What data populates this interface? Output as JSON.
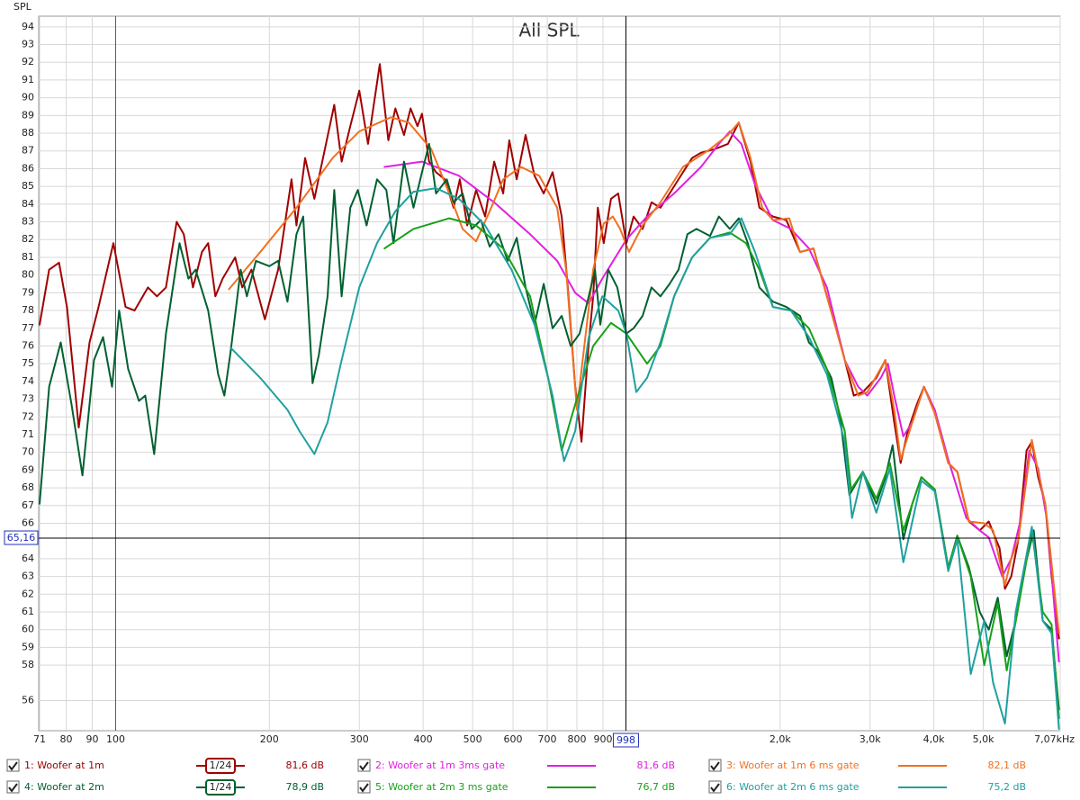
{
  "chart_data": {
    "type": "line",
    "title": "All SPL",
    "y_label": "SPL",
    "xscale": "log",
    "grid": true,
    "xlim": [
      70.7,
      7070
    ],
    "ylim": [
      54.3,
      94.6
    ],
    "xticks": [
      71,
      80,
      90,
      100,
      200,
      300,
      400,
      500,
      600,
      700,
      800,
      900,
      {
        "value": 2000,
        "label": "2,0k"
      },
      {
        "value": 3000,
        "label": "3,0k"
      },
      {
        "value": 4000,
        "label": "4,0k"
      },
      {
        "value": 5000,
        "label": "5,0k"
      },
      {
        "value": 7070,
        "label": "7,07kHz"
      }
    ],
    "yticks": [
      56,
      58,
      59,
      60,
      61,
      62,
      63,
      64,
      66,
      67,
      68,
      69,
      70,
      71,
      72,
      73,
      74,
      75,
      76,
      77,
      78,
      79,
      80,
      81,
      82,
      83,
      84,
      85,
      86,
      87,
      88,
      89,
      90,
      91,
      92,
      93,
      94
    ],
    "cursor": {
      "x": 998,
      "y": {
        "value": 65.16,
        "label": "65,16"
      }
    },
    "series": [
      {
        "name": "1: Woofer at 1m",
        "color": "#a00000",
        "smoothing": "1/24",
        "readout": "81,6 dB",
        "x": [
          71,
          74.1,
          77.5,
          80.3,
          84.7,
          88.9,
          92.6,
          99,
          104.6,
          108.9,
          115.7,
          120.5,
          125.5,
          131.7,
          136,
          141.7,
          147.6,
          151.8,
          156.8,
          162,
          171.4,
          177,
          184.5,
          196,
          208,
          221,
          226,
          235,
          245,
          268,
          277,
          288,
          300,
          312,
          329,
          342,
          353,
          367,
          378,
          390,
          398,
          411,
          424,
          441,
          459,
          472,
          488,
          508,
          529,
          551,
          574,
          590,
          610,
          635,
          661,
          689,
          717,
          747,
          768,
          794,
          817,
          844,
          861,
          879,
          903,
          933,
          964,
          1000,
          1033,
          1076,
          1120,
          1166,
          1215,
          1291,
          1345,
          1400,
          1488,
          1581,
          1660,
          1750,
          1822,
          1936,
          2057,
          2188,
          2325,
          2470,
          2624,
          2788,
          2904,
          3086,
          3214,
          3346,
          3443,
          3557,
          3705,
          3826,
          4017,
          4268,
          4446,
          4686,
          4920,
          5123,
          5378,
          5510,
          5670,
          5856,
          6074,
          6223,
          6400,
          6610,
          6800,
          7030
        ],
        "values": [
          77.2,
          80.3,
          80.7,
          78.2,
          71.4,
          76.2,
          78.2,
          81.8,
          78.2,
          78.0,
          79.3,
          78.8,
          79.3,
          83.0,
          82.3,
          79.3,
          81.3,
          81.8,
          78.8,
          79.8,
          81.0,
          79.3,
          80.3,
          77.5,
          80.3,
          85.4,
          82.8,
          86.6,
          84.3,
          89.6,
          86.4,
          88.4,
          90.4,
          87.4,
          91.9,
          87.6,
          89.4,
          87.9,
          89.4,
          88.4,
          89.1,
          86.4,
          85.8,
          85.4,
          83.8,
          85.4,
          82.8,
          84.8,
          83.3,
          86.4,
          84.6,
          87.6,
          85.4,
          87.9,
          85.6,
          84.6,
          85.8,
          83.3,
          79.3,
          73.7,
          70.6,
          76.2,
          78.8,
          83.8,
          81.8,
          84.3,
          84.6,
          81.8,
          83.3,
          82.6,
          84.1,
          83.8,
          84.6,
          85.8,
          86.6,
          86.9,
          87.1,
          87.4,
          88.6,
          86.4,
          83.8,
          83.3,
          83.1,
          81.3,
          81.5,
          78.8,
          76.2,
          73.2,
          73.4,
          74.2,
          75.2,
          71.7,
          69.4,
          71.2,
          72.7,
          73.7,
          72.2,
          69.4,
          68.9,
          66.1,
          65.6,
          66.1,
          64.6,
          62.3,
          63.0,
          65.1,
          70.1,
          70.6,
          68.6,
          67.1,
          63.0,
          59.5
        ]
      },
      {
        "name": "2: Woofer at 1m 3ms gate",
        "color": "#e020e0",
        "readout": "81,6 dB",
        "x": [
          336,
          398,
          470,
          551,
          648,
          732,
          794,
          844,
          897,
          1000,
          1098,
          1240,
          1400,
          1518,
          1594,
          1680,
          1786,
          1936,
          2100,
          2277,
          2470,
          2677,
          2845,
          2964,
          3150,
          3252,
          3346,
          3486,
          3630,
          3826,
          4017,
          4268,
          4630,
          4920,
          5123,
          5445,
          5670,
          5905,
          6150,
          6400,
          6670,
          7030
        ],
        "values": [
          86.1,
          86.4,
          85.6,
          84.1,
          82.3,
          80.8,
          79.0,
          78.4,
          79.8,
          82.0,
          83.3,
          84.6,
          86.1,
          87.4,
          88.1,
          87.4,
          85.1,
          83.1,
          82.6,
          81.5,
          79.3,
          75.2,
          73.7,
          73.2,
          74.2,
          75.0,
          73.2,
          70.9,
          71.7,
          73.7,
          72.4,
          69.6,
          66.3,
          65.6,
          65.2,
          63.0,
          64.0,
          66.1,
          70.1,
          69.1,
          66.1,
          58.2
        ]
      },
      {
        "name": "3: Woofer at 1m 6 ms gate",
        "color": "#f07020",
        "readout": "82,1 dB",
        "x": [
          166.7,
          192,
          226,
          266,
          300,
          346,
          375,
          415,
          450,
          478,
          508,
          540,
          574,
          622,
          675,
          732,
          762,
          800,
          861,
          903,
          941,
          972,
          1012,
          1076,
          1166,
          1291,
          1458,
          1581,
          1660,
          1750,
          1844,
          1936,
          2084,
          2188,
          2325,
          2470,
          2677,
          2845,
          2964,
          3214,
          3346,
          3443,
          3630,
          3826,
          4017,
          4268,
          4446,
          4686,
          5020,
          5226,
          5510,
          5670,
          5856,
          6223,
          6400,
          6610,
          7030
        ],
        "values": [
          79.2,
          81.3,
          83.8,
          86.6,
          88.1,
          88.9,
          88.6,
          87.1,
          84.6,
          82.6,
          81.9,
          83.6,
          85.4,
          86.1,
          85.6,
          83.8,
          80.3,
          72.4,
          80.3,
          82.9,
          83.3,
          82.6,
          81.3,
          82.8,
          84.1,
          86.1,
          87.1,
          87.9,
          88.6,
          86.6,
          83.8,
          83.1,
          83.2,
          81.3,
          81.5,
          78.8,
          75.2,
          73.2,
          73.4,
          75.2,
          72.4,
          69.6,
          71.7,
          73.7,
          72.2,
          69.4,
          68.9,
          66.1,
          66.0,
          65.6,
          62.5,
          64.0,
          65.1,
          70.7,
          68.9,
          67.1,
          59.8
        ]
      },
      {
        "name": "4: Woofer at 2m",
        "color": "#006030",
        "smoothing": "1/24",
        "readout": "78,9 dB",
        "x": [
          71,
          74.1,
          78.1,
          82.0,
          86.1,
          90.7,
          94.5,
          98.4,
          101.6,
          105.8,
          111.1,
          114.3,
          119,
          125.5,
          133.4,
          138.9,
          143.4,
          151.8,
          158.8,
          163.3,
          168,
          175.7,
          180.7,
          188.3,
          200,
          208,
          217,
          226,
          233,
          243,
          250,
          260,
          268,
          277,
          288,
          298,
          310,
          325,
          339,
          350,
          367,
          383,
          398,
          411,
          424,
          445,
          459,
          478,
          498,
          519,
          540,
          562,
          586,
          610,
          635,
          661,
          689,
          717,
          747,
          778,
          810,
          844,
          868,
          889,
          922,
          960,
          1000,
          1033,
          1076,
          1120,
          1166,
          1215,
          1265,
          1317,
          1372,
          1458,
          1518,
          1594,
          1660,
          1729,
          1822,
          1936,
          2057,
          2188,
          2277,
          2371,
          2520,
          2624,
          2734,
          2904,
          3086,
          3214,
          3321,
          3486,
          3630,
          3780,
          4017,
          4268,
          4446,
          4686,
          4920,
          5123,
          5335,
          5555,
          5785,
          6025,
          6275,
          6535,
          6800,
          7030
        ],
        "values": [
          67.1,
          73.7,
          76.2,
          72.7,
          68.7,
          75.2,
          76.5,
          73.7,
          78.0,
          74.7,
          72.9,
          73.2,
          69.9,
          76.7,
          81.8,
          79.8,
          80.3,
          78.0,
          74.4,
          73.2,
          75.7,
          80.3,
          78.8,
          80.8,
          80.5,
          80.8,
          78.5,
          82.3,
          83.3,
          73.9,
          75.5,
          78.8,
          84.8,
          78.8,
          83.8,
          84.8,
          82.8,
          85.4,
          84.8,
          81.8,
          86.4,
          83.8,
          85.8,
          87.4,
          84.6,
          85.4,
          84.1,
          84.6,
          82.6,
          83.1,
          81.6,
          82.3,
          80.8,
          82.1,
          79.3,
          77.2,
          79.5,
          77.0,
          77.7,
          76.0,
          76.7,
          78.8,
          80.3,
          77.2,
          80.3,
          79.3,
          76.7,
          77.0,
          77.7,
          79.3,
          78.8,
          79.5,
          80.3,
          82.3,
          82.6,
          82.2,
          83.3,
          82.6,
          83.2,
          81.8,
          79.3,
          78.5,
          78.2,
          77.7,
          76.2,
          75.7,
          74.2,
          71.9,
          67.6,
          68.9,
          67.1,
          68.6,
          70.4,
          65.1,
          67.1,
          68.6,
          67.9,
          63.5,
          65.3,
          63.5,
          61.0,
          60.0,
          61.8,
          58.5,
          60.5,
          63.5,
          65.6,
          60.5,
          60.0,
          55.5
        ]
      },
      {
        "name": "5: Woofer at 2m 3 ms gate",
        "color": "#18a018",
        "readout": "76,7 dB",
        "x": [
          336,
          383,
          450,
          508,
          574,
          648,
          703,
          747,
          794,
          861,
          933,
          1000,
          1098,
          1166,
          1240,
          1345,
          1458,
          1594,
          1715,
          1822,
          1936,
          2100,
          2277,
          2470,
          2677,
          2754,
          2904,
          3086,
          3280,
          3486,
          3780,
          4017,
          4268,
          4446,
          4723,
          5020,
          5335,
          5555,
          5830,
          6223,
          6535,
          6800,
          7030
        ],
        "values": [
          81.5,
          82.6,
          83.2,
          82.8,
          81.5,
          78.8,
          74.2,
          70.1,
          72.7,
          76.0,
          77.3,
          76.7,
          75.0,
          76.0,
          78.8,
          81.0,
          82.1,
          82.4,
          81.8,
          80.3,
          78.2,
          78.0,
          77.0,
          74.7,
          71.2,
          67.9,
          68.9,
          67.4,
          69.4,
          65.6,
          68.6,
          67.9,
          63.5,
          65.3,
          63.0,
          58.0,
          61.5,
          57.7,
          61.0,
          65.6,
          61.0,
          60.3,
          55.0
        ]
      },
      {
        "name": "6: Woofer at 2m 6 ms gate",
        "color": "#20a0a0",
        "readout": "75,2 dB",
        "x": [
          168,
          192,
          217,
          229,
          245,
          260,
          277,
          300,
          325,
          353,
          383,
          424,
          470,
          529,
          596,
          661,
          717,
          755,
          794,
          844,
          897,
          964,
          1000,
          1046,
          1098,
          1166,
          1240,
          1345,
          1458,
          1594,
          1680,
          1786,
          1936,
          2100,
          2277,
          2470,
          2677,
          2766,
          2904,
          3086,
          3280,
          3486,
          3780,
          4017,
          4268,
          4446,
          4723,
          5020,
          5226,
          5510,
          5785,
          6223,
          6535,
          6800,
          7030
        ],
        "values": [
          75.9,
          74.2,
          72.4,
          71.2,
          69.9,
          71.7,
          75.2,
          79.3,
          81.8,
          83.6,
          84.7,
          84.9,
          84.3,
          82.8,
          80.3,
          77.2,
          73.2,
          69.5,
          71.2,
          76.5,
          78.8,
          78.0,
          76.7,
          73.4,
          74.2,
          76.2,
          78.8,
          81.0,
          82.1,
          82.3,
          83.2,
          81.3,
          78.2,
          78.0,
          76.5,
          74.4,
          70.6,
          66.3,
          68.9,
          66.6,
          69.1,
          63.8,
          68.4,
          67.8,
          63.3,
          65.1,
          57.5,
          60.5,
          57.0,
          54.7,
          61.0,
          65.8,
          60.5,
          59.8,
          54.4
        ]
      }
    ]
  }
}
